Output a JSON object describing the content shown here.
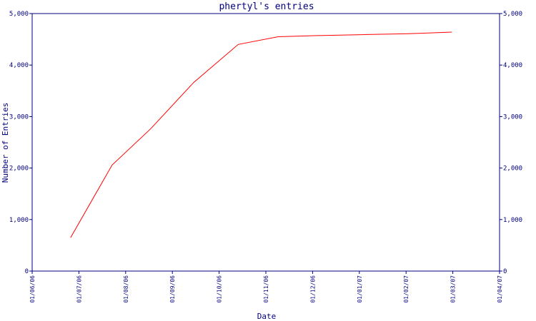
{
  "chart_data": {
    "type": "line",
    "title": "phertyl's entries",
    "xlabel": "Date",
    "ylabel": "Number of Entries",
    "x_ticks": [
      "01/06/06",
      "01/07/06",
      "01/08/06",
      "01/09/06",
      "01/10/06",
      "01/11/06",
      "01/12/06",
      "01/01/07",
      "01/02/07",
      "01/03/07",
      "01/04/07"
    ],
    "y_ticks": [
      "0",
      "1,000",
      "2,000",
      "3,000",
      "4,000",
      "5,000"
    ],
    "ylim": [
      0,
      5000
    ],
    "xlim": [
      "2006-06-01",
      "2007-04-01"
    ],
    "grid": false,
    "right_axis": true,
    "series": [
      {
        "color": "#ff0000",
        "x": [
          "2006-06-26",
          "2006-07-23",
          "2006-08-17",
          "2006-09-14",
          "2006-10-13",
          "2006-11-08",
          "2006-12-01",
          "2007-01-01",
          "2007-02-01",
          "2007-03-01"
        ],
        "y": [
          650,
          2060,
          2760,
          3660,
          4400,
          4550,
          4570,
          4590,
          4610,
          4640
        ]
      }
    ],
    "colors": {
      "axis": "#000080",
      "text": "#000080",
      "line": "#ff0000"
    }
  }
}
